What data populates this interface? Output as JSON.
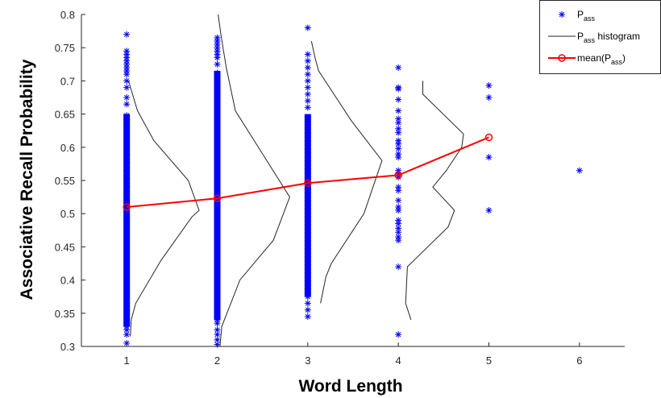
{
  "chart_data": {
    "type": "scatter",
    "xlabel": "Word Length",
    "ylabel": "Associative Recall Probability",
    "xlim": [
      0.5,
      6.5
    ],
    "ylim": [
      0.3,
      0.8
    ],
    "x_ticks": [
      1,
      2,
      3,
      4,
      5,
      6
    ],
    "x_tick_labels": [
      "1",
      "2",
      "3",
      "4",
      "5",
      "6"
    ],
    "y_ticks": [
      0.3,
      0.35,
      0.4,
      0.45,
      0.5,
      0.55,
      0.6,
      0.65,
      0.7,
      0.75,
      0.8
    ],
    "y_tick_labels": [
      "0.3",
      "0.35",
      "0.4",
      "0.45",
      "0.5",
      "0.55",
      "0.6",
      "0.65",
      "0.7",
      "0.75",
      "0.8"
    ],
    "grid": false,
    "legend_position": "top-right",
    "legend": [
      {
        "base": "P",
        "sub": "ass",
        "suffix": ""
      },
      {
        "base": "P",
        "sub": "ass",
        "suffix": " histogram"
      },
      {
        "base": "mean(P",
        "sub": "ass",
        "suffix": ")"
      }
    ],
    "colors": {
      "scatter": "#0000ff",
      "histogram": "#262626",
      "mean": "#ff0000"
    },
    "scatter_columns": [
      {
        "x": 1,
        "dense_from": 0.33,
        "dense_to": 0.65,
        "upper_sparse": [
          0.665,
          0.675,
          0.69,
          0.7,
          0.71,
          0.715,
          0.72,
          0.725,
          0.73,
          0.735,
          0.74,
          0.745,
          0.77
        ],
        "lower_sparse": [
          0.325,
          0.318,
          0.305
        ]
      },
      {
        "x": 2,
        "dense_from": 0.34,
        "dense_to": 0.715,
        "upper_sparse": [
          0.725,
          0.735,
          0.74,
          0.745,
          0.75,
          0.755,
          0.76,
          0.765
        ],
        "lower_sparse": [
          0.335,
          0.325,
          0.318,
          0.31,
          0.303
        ]
      },
      {
        "x": 3,
        "dense_from": 0.375,
        "dense_to": 0.65,
        "upper_sparse": [
          0.66,
          0.67,
          0.68,
          0.69,
          0.7,
          0.71,
          0.72,
          0.73,
          0.74,
          0.78
        ],
        "lower_sparse": [
          0.365,
          0.355,
          0.345
        ]
      },
      {
        "x": 4,
        "points": [
          0.72,
          0.69,
          0.688,
          0.672,
          0.655,
          0.643,
          0.637,
          0.628,
          0.622,
          0.61,
          0.605,
          0.598,
          0.59,
          0.585,
          0.565,
          0.56,
          0.555,
          0.54,
          0.535,
          0.52,
          0.51,
          0.505,
          0.49,
          0.485,
          0.478,
          0.472,
          0.465,
          0.46,
          0.42,
          0.318
        ]
      },
      {
        "x": 5,
        "points": [
          0.693,
          0.675,
          0.585,
          0.505
        ]
      },
      {
        "x": 6,
        "points": [
          0.565
        ]
      }
    ],
    "histograms": [
      {
        "x_base": 1,
        "points": [
          [
            0.04,
            0.315
          ],
          [
            0.05,
            0.34
          ],
          [
            0.1,
            0.365
          ],
          [
            0.38,
            0.43
          ],
          [
            0.72,
            0.495
          ],
          [
            0.8,
            0.505
          ],
          [
            0.68,
            0.55
          ],
          [
            0.3,
            0.61
          ],
          [
            0.12,
            0.655
          ],
          [
            0.02,
            0.7
          ]
        ]
      },
      {
        "x_base": 2,
        "points": [
          [
            0.03,
            0.3
          ],
          [
            0.05,
            0.33
          ],
          [
            0.25,
            0.4
          ],
          [
            0.62,
            0.46
          ],
          [
            0.8,
            0.525
          ],
          [
            0.5,
            0.59
          ],
          [
            0.2,
            0.655
          ],
          [
            0.1,
            0.72
          ],
          [
            0.04,
            0.77
          ],
          [
            0.01,
            0.8
          ]
        ]
      },
      {
        "x_base": 3,
        "points": [
          [
            0.14,
            0.365
          ],
          [
            0.2,
            0.405
          ],
          [
            0.26,
            0.425
          ],
          [
            0.62,
            0.5
          ],
          [
            0.72,
            0.54
          ],
          [
            0.82,
            0.58
          ],
          [
            0.48,
            0.64
          ],
          [
            0.12,
            0.715
          ],
          [
            0.08,
            0.735
          ],
          [
            0.04,
            0.76
          ]
        ]
      },
      {
        "x_base": 4,
        "points": [
          [
            0.14,
            0.34
          ],
          [
            0.08,
            0.365
          ],
          [
            0.1,
            0.42
          ],
          [
            0.55,
            0.48
          ],
          [
            0.62,
            0.505
          ],
          [
            0.38,
            0.54
          ],
          [
            0.53,
            0.565
          ],
          [
            0.7,
            0.6
          ],
          [
            0.72,
            0.62
          ],
          [
            0.27,
            0.68
          ],
          [
            0.27,
            0.7
          ]
        ]
      }
    ],
    "mean_series": {
      "x": [
        1,
        2,
        3,
        4,
        5
      ],
      "y": [
        0.51,
        0.523,
        0.546,
        0.558,
        0.615
      ]
    }
  }
}
